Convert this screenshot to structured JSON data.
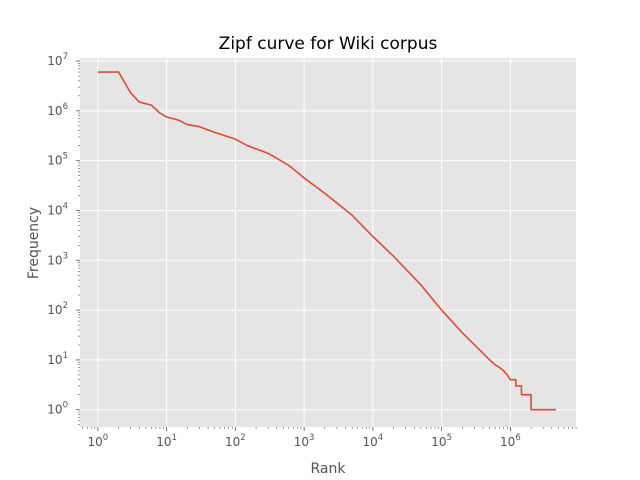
{
  "chart_data": {
    "type": "line",
    "title": "Zipf curve for Wiki corpus",
    "xlabel": "Rank",
    "ylabel": "Frequency",
    "xscale": "log",
    "yscale": "log",
    "xlim": [
      0.55,
      9000000
    ],
    "ylim": [
      0.45,
      11500000
    ],
    "grid": true,
    "x_ticks": [
      {
        "value": 1,
        "base": "10",
        "exp": "0"
      },
      {
        "value": 10,
        "base": "10",
        "exp": "1"
      },
      {
        "value": 100,
        "base": "10",
        "exp": "2"
      },
      {
        "value": 1000,
        "base": "10",
        "exp": "3"
      },
      {
        "value": 10000,
        "base": "10",
        "exp": "4"
      },
      {
        "value": 100000,
        "base": "10",
        "exp": "5"
      },
      {
        "value": 1000000,
        "base": "10",
        "exp": "6"
      }
    ],
    "y_ticks": [
      {
        "value": 1,
        "base": "10",
        "exp": "0"
      },
      {
        "value": 10,
        "base": "10",
        "exp": "1"
      },
      {
        "value": 100,
        "base": "10",
        "exp": "2"
      },
      {
        "value": 1000,
        "base": "10",
        "exp": "3"
      },
      {
        "value": 10000,
        "base": "10",
        "exp": "4"
      },
      {
        "value": 100000,
        "base": "10",
        "exp": "5"
      },
      {
        "value": 1000000,
        "base": "10",
        "exp": "6"
      },
      {
        "value": 10000000,
        "base": "10",
        "exp": "7"
      }
    ],
    "series": [
      {
        "color": "#e24a33",
        "points": [
          [
            1,
            6000000
          ],
          [
            2,
            6000000
          ],
          [
            3,
            2300000
          ],
          [
            4,
            1500000
          ],
          [
            6,
            1300000
          ],
          [
            8,
            900000
          ],
          [
            10,
            750000
          ],
          [
            15,
            650000
          ],
          [
            20,
            530000
          ],
          [
            30,
            480000
          ],
          [
            50,
            370000
          ],
          [
            100,
            270000
          ],
          [
            150,
            200000
          ],
          [
            300,
            140000
          ],
          [
            600,
            80000
          ],
          [
            1000,
            45000
          ],
          [
            2000,
            22000
          ],
          [
            5000,
            8000
          ],
          [
            10000,
            3000
          ],
          [
            20000,
            1200
          ],
          [
            50000,
            320
          ],
          [
            100000,
            100
          ],
          [
            200000,
            35
          ],
          [
            500000,
            10
          ],
          [
            600000,
            8
          ],
          [
            700000,
            7
          ],
          [
            800000,
            6
          ],
          [
            900000,
            5
          ],
          [
            1000000,
            4
          ],
          [
            1200000,
            4
          ],
          [
            1200000,
            3
          ],
          [
            1450000,
            3
          ],
          [
            1450000,
            2
          ],
          [
            2000000,
            2
          ],
          [
            2000000,
            1
          ],
          [
            4600000,
            1
          ]
        ]
      }
    ]
  }
}
